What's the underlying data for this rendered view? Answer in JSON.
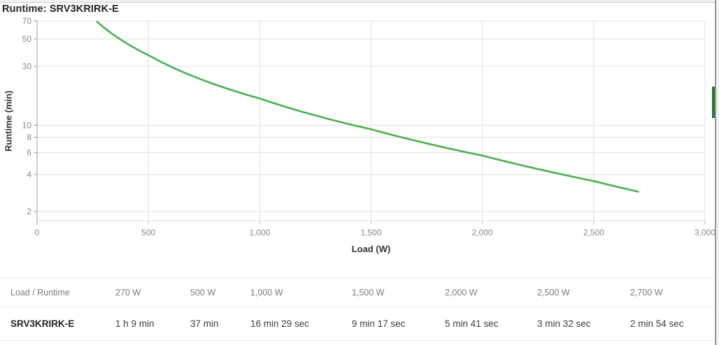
{
  "chart_data": {
    "type": "line",
    "title": "Runtime: SRV3KRIRK-E",
    "xlabel": "Load (W)",
    "ylabel": "Runtime (min)",
    "grid": true,
    "legend": "none",
    "x_axis": {
      "min": 0,
      "max": 3000,
      "ticks": [
        {
          "v": 0,
          "label": "0"
        },
        {
          "v": 500,
          "label": "500"
        },
        {
          "v": 1000,
          "label": "1,000"
        },
        {
          "v": 1500,
          "label": "1,500"
        },
        {
          "v": 2000,
          "label": "2,000"
        },
        {
          "v": 2500,
          "label": "2,500"
        },
        {
          "v": 3000,
          "label": "3,000"
        }
      ]
    },
    "y_axis": {
      "scale": "log",
      "ticks": [
        {
          "v": 70,
          "label": "70"
        },
        {
          "v": 50,
          "label": "50"
        },
        {
          "v": 30,
          "label": "30"
        },
        {
          "v": 10,
          "label": "10"
        },
        {
          "v": 8,
          "label": "8"
        },
        {
          "v": 6,
          "label": "6"
        },
        {
          "v": 4,
          "label": "4"
        },
        {
          "v": 2,
          "label": "2"
        }
      ]
    },
    "series": [
      {
        "name": "SRV3KRIRK-E",
        "color": "#47b14c",
        "points": [
          {
            "load_w": 270,
            "runtime_min": 69.0,
            "runtime_label": "1 h 9 min"
          },
          {
            "load_w": 500,
            "runtime_min": 37.0,
            "runtime_label": "37 min"
          },
          {
            "load_w": 1000,
            "runtime_min": 16.483,
            "runtime_label": "16 min 29 sec"
          },
          {
            "load_w": 1500,
            "runtime_min": 9.283,
            "runtime_label": "9 min 17 sec"
          },
          {
            "load_w": 2000,
            "runtime_min": 5.683,
            "runtime_label": "5 min 41 sec"
          },
          {
            "load_w": 2500,
            "runtime_min": 3.533,
            "runtime_label": "3 min 32 sec"
          },
          {
            "load_w": 2700,
            "runtime_min": 2.9,
            "runtime_label": "2 min 54 sec"
          }
        ]
      }
    ]
  },
  "table": {
    "headers": [
      "Load / Runtime",
      "270 W",
      "500 W",
      "1,000 W",
      "1,500 W",
      "2,000 W",
      "2,500 W",
      "2,700 W"
    ],
    "rows": [
      [
        "SRV3KRIRK-E",
        "1 h 9 min",
        "37 min",
        "16 min 29 sec",
        "9 min 17 sec",
        "5 min 41 sec",
        "3 min 32 sec",
        "2 min 54 sec"
      ]
    ]
  },
  "colors": {
    "curve_green": "#47b14c",
    "feedback_tab_green": "#1f7a30",
    "gridline": "#e0e0e0",
    "axis": "#999999",
    "tick_label": "#888888"
  }
}
